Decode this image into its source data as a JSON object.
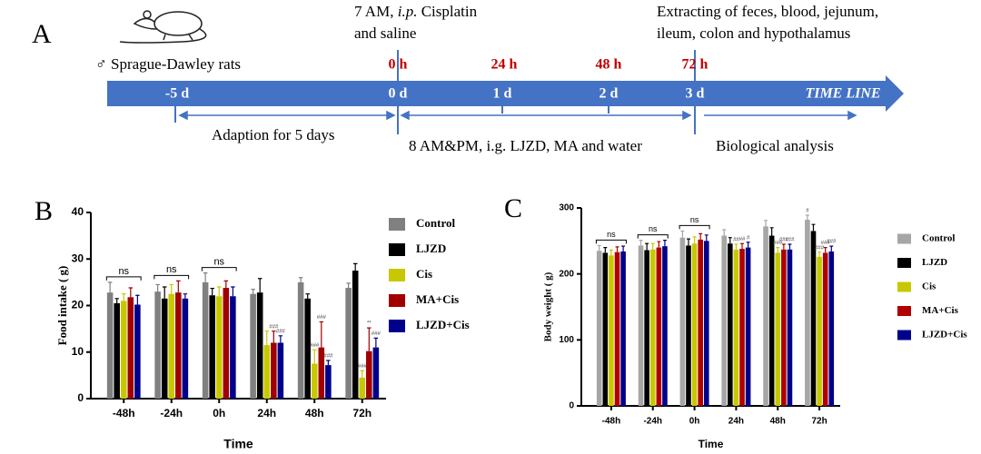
{
  "timeline": {
    "panel": "A",
    "subject": "♂ Sprague-Dawley rats",
    "cisplatin": [
      "7 AM, ",
      "i.p.",
      " Cisplatin"
    ],
    "cisplatin_line2": "and saline",
    "extraction": [
      "Extracting of feces, blood, jejunum,",
      "ileum, colon and hypothalamus"
    ],
    "hours": [
      "0 h",
      "24 h",
      "48 h",
      "72 h"
    ],
    "days": [
      "-5 d",
      "0 d",
      "1 d",
      "2 d",
      "3 d"
    ],
    "arrow_label": "TIME LINE",
    "periods": [
      "Adaption for 5 days",
      "8 AM&PM, i.g. LJZD, MA and water",
      "Biological analysis"
    ]
  },
  "chart_data": [
    {
      "type": "bar",
      "panel": "B",
      "xlabel": "Time",
      "ylabel": "Food intake ( g)",
      "categories": [
        "-48h",
        "-24h",
        "0h",
        "24h",
        "48h",
        "72h"
      ],
      "group_labels": [
        "ns",
        "ns",
        "ns",
        null,
        null,
        null
      ],
      "ylim": [
        0,
        40
      ],
      "yticks": [
        0,
        10,
        20,
        30,
        40
      ],
      "series": [
        {
          "name": "Control",
          "color": "#808080",
          "values": [
            22.8,
            23,
            25,
            22.5,
            25,
            23.8
          ],
          "errors": [
            2.2,
            1.5,
            2,
            1,
            1,
            1
          ],
          "annotations": [
            null,
            null,
            null,
            null,
            null,
            null
          ]
        },
        {
          "name": "LJZD",
          "color": "#000000",
          "values": [
            20.5,
            21.5,
            22.2,
            22.8,
            21.5,
            27.5
          ],
          "errors": [
            1,
            2.5,
            1.5,
            3,
            1,
            1.5
          ],
          "annotations": [
            null,
            null,
            null,
            null,
            null,
            null
          ]
        },
        {
          "name": "Cis",
          "color": "#c8c800",
          "values": [
            21,
            22.5,
            22,
            11.5,
            7.5,
            4.5
          ],
          "errors": [
            1.5,
            2,
            2,
            3,
            3,
            1.5
          ],
          "annotations": [
            null,
            null,
            null,
            null,
            "###",
            "###"
          ]
        },
        {
          "name": "MA+Cis",
          "color": "#a00000",
          "values": [
            21.8,
            22.8,
            23.8,
            12,
            11,
            10.2
          ],
          "errors": [
            2,
            2.5,
            1.5,
            2.5,
            5.5,
            5
          ],
          "annotations": [
            null,
            null,
            null,
            "###",
            "###",
            "**"
          ]
        },
        {
          "name": "LJZD+Cis",
          "color": "#00008b",
          "values": [
            20.2,
            21.5,
            22,
            12,
            7.2,
            11
          ],
          "errors": [
            2,
            1,
            2,
            1.5,
            1,
            2
          ],
          "annotations": [
            null,
            null,
            null,
            "###",
            "###",
            "###"
          ]
        }
      ]
    },
    {
      "type": "bar",
      "panel": "C",
      "xlabel": "Time",
      "ylabel": "Body weight ( g)",
      "categories": [
        "-48h",
        "-24h",
        "0h",
        "24h",
        "48h",
        "72h"
      ],
      "group_labels": [
        "ns",
        "ns",
        "ns",
        null,
        null,
        null
      ],
      "ylim": [
        0,
        300
      ],
      "yticks": [
        0,
        100,
        200,
        300
      ],
      "series": [
        {
          "name": "Control",
          "color": "#a6a6a6",
          "values": [
            235,
            243,
            255,
            258,
            272,
            282
          ],
          "errors": [
            8,
            8,
            10,
            9,
            9,
            7
          ],
          "annotations": [
            null,
            null,
            null,
            null,
            null,
            "#"
          ]
        },
        {
          "name": "LJZD",
          "color": "#000000",
          "values": [
            232,
            236,
            243,
            246,
            258,
            265
          ],
          "errors": [
            8,
            10,
            10,
            9,
            12,
            10
          ],
          "annotations": [
            null,
            null,
            null,
            null,
            null,
            null
          ]
        },
        {
          "name": "Cis",
          "color": "#c8c800",
          "values": [
            228,
            237,
            246,
            237,
            232,
            226
          ],
          "errors": [
            8,
            9,
            10,
            8,
            8,
            7
          ],
          "annotations": [
            null,
            null,
            null,
            "##",
            "###",
            "###"
          ]
        },
        {
          "name": "MA+Cis",
          "color": "#b00000",
          "values": [
            233,
            240,
            252,
            238,
            237,
            232
          ],
          "errors": [
            8,
            9,
            9,
            8,
            8,
            8
          ],
          "annotations": [
            null,
            null,
            null,
            "##",
            "###",
            "###"
          ]
        },
        {
          "name": "LJZD+Cis",
          "color": "#00008b",
          "values": [
            234,
            242,
            250,
            240,
            237,
            234
          ],
          "errors": [
            8,
            9,
            9,
            8,
            8,
            8
          ],
          "annotations": [
            null,
            null,
            null,
            "#",
            "###",
            "###"
          ]
        }
      ]
    }
  ]
}
